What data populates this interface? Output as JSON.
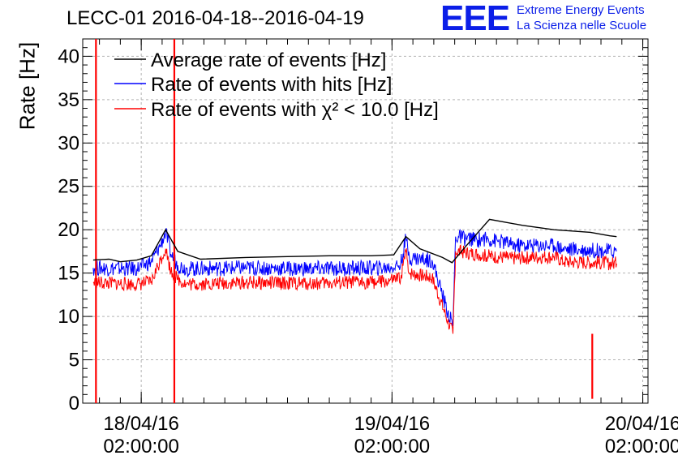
{
  "header": {
    "title": "LECC-01 2016-04-18--2016-04-19",
    "logo_text": "EEE",
    "logo_line1": "Extreme Energy Events",
    "logo_line2": "La Scienza nelle Scuole"
  },
  "colors": {
    "average": "#000000",
    "hits": "#0000ff",
    "chi2": "#ff0000",
    "logo": "#0b1ee8",
    "grid": "#b4b4b4"
  },
  "chart_data": {
    "type": "line",
    "title": "LECC-01 2016-04-18--2016-04-19",
    "xlabel": "",
    "ylabel": "Rate [Hz]",
    "ylim": [
      0,
      42
    ],
    "yticks": [
      0,
      5,
      10,
      15,
      20,
      25,
      30,
      35,
      40
    ],
    "xlim": [
      "2016-04-17T20:24",
      "2016-04-20T02:30"
    ],
    "xticks": [
      {
        "date": "18/04/16",
        "time": "02:00:00",
        "t": "2016-04-18T02:00"
      },
      {
        "date": "19/04/16",
        "time": "02:00:00",
        "t": "2016-04-19T02:00"
      },
      {
        "date": "20/04/16",
        "time": "02:00:00",
        "t": "2016-04-20T02:00"
      }
    ],
    "grid": true,
    "legend_position": "top-left",
    "series": [
      {
        "name": "Average rate of events [Hz]",
        "color": "#000000",
        "points": [
          [
            "2016-04-17T21:24",
            16.5
          ],
          [
            "2016-04-17T22:55",
            16.6
          ],
          [
            "2016-04-18T00:00",
            16.3
          ],
          [
            "2016-04-18T01:35",
            16.5
          ],
          [
            "2016-04-18T02:58",
            17.0
          ],
          [
            "2016-04-18T04:20",
            20.0
          ],
          [
            "2016-04-18T05:30",
            17.5
          ],
          [
            "2016-04-18T07:40",
            16.6
          ],
          [
            "2016-04-18T12:00",
            16.8
          ],
          [
            "2016-04-18T16:00",
            16.9
          ],
          [
            "2016-04-18T20:00",
            17.0
          ],
          [
            "2016-04-19T00:00",
            17.0
          ],
          [
            "2016-04-19T02:10",
            17.1
          ],
          [
            "2016-04-19T03:20",
            19.2
          ],
          [
            "2016-04-19T04:40",
            17.8
          ],
          [
            "2016-04-19T06:50",
            16.8
          ],
          [
            "2016-04-19T07:45",
            16.2
          ],
          [
            "2016-04-19T09:00",
            18.0
          ],
          [
            "2016-04-19T11:20",
            21.2
          ],
          [
            "2016-04-19T14:30",
            20.5
          ],
          [
            "2016-04-19T17:30",
            20.0
          ],
          [
            "2016-04-19T21:00",
            19.7
          ],
          [
            "2016-04-19T22:50",
            19.3
          ],
          [
            "2016-04-19T23:30",
            19.2
          ]
        ]
      },
      {
        "name": "Rate of events with hits [Hz]",
        "color": "#0000ff",
        "points": [
          [
            "2016-04-17T21:24",
            15.6
          ],
          [
            "2016-04-18T01:35",
            15.5
          ],
          [
            "2016-04-18T02:58",
            16.3
          ],
          [
            "2016-04-18T03:50",
            18.2
          ],
          [
            "2016-04-18T04:20",
            19.7
          ],
          [
            "2016-04-18T04:50",
            17.2
          ],
          [
            "2016-04-18T05:30",
            15.9
          ],
          [
            "2016-04-18T06:20",
            15.5
          ],
          [
            "2016-04-18T12:00",
            15.6
          ],
          [
            "2016-04-18T18:00",
            15.5
          ],
          [
            "2016-04-19T01:35",
            15.6
          ],
          [
            "2016-04-19T02:50",
            16.0
          ],
          [
            "2016-04-19T03:20",
            19.0
          ],
          [
            "2016-04-19T03:40",
            16.8
          ],
          [
            "2016-04-19T05:50",
            16.5
          ],
          [
            "2016-04-19T07:20",
            10.5
          ],
          [
            "2016-04-19T07:50",
            9.0
          ],
          [
            "2016-04-19T08:05",
            19.2
          ],
          [
            "2016-04-19T10:15",
            18.8
          ],
          [
            "2016-04-19T10:40",
            19.0
          ],
          [
            "2016-04-19T13:00",
            18.5
          ],
          [
            "2016-04-19T13:25",
            18.2
          ],
          [
            "2016-04-19T16:30",
            18.2
          ],
          [
            "2016-04-19T17:30",
            18.2
          ],
          [
            "2016-04-19T18:30",
            17.8
          ],
          [
            "2016-04-19T23:30",
            17.5
          ]
        ]
      },
      {
        "name": "Rate of events with χ² < 10.0 [Hz]",
        "color": "#ff0000",
        "points": [
          [
            "2016-04-17T21:24",
            13.9
          ],
          [
            "2016-04-18T01:35",
            13.7
          ],
          [
            "2016-04-18T02:58",
            14.0
          ],
          [
            "2016-04-18T03:50",
            16.5
          ],
          [
            "2016-04-18T04:20",
            17.8
          ],
          [
            "2016-04-18T04:50",
            15.2
          ],
          [
            "2016-04-18T05:30",
            14.3
          ],
          [
            "2016-04-18T06:20",
            13.7
          ],
          [
            "2016-04-18T12:00",
            13.9
          ],
          [
            "2016-04-18T18:00",
            13.8
          ],
          [
            "2016-04-19T01:35",
            14.0
          ],
          [
            "2016-04-19T02:50",
            14.4
          ],
          [
            "2016-04-19T03:20",
            17.5
          ],
          [
            "2016-04-19T03:40",
            15.0
          ],
          [
            "2016-04-19T05:50",
            14.5
          ],
          [
            "2016-04-19T07:20",
            9.5
          ],
          [
            "2016-04-19T07:50",
            8.0
          ],
          [
            "2016-04-19T08:05",
            17.5
          ],
          [
            "2016-04-19T10:15",
            17.2
          ],
          [
            "2016-04-19T10:40",
            17.0
          ],
          [
            "2016-04-19T13:00",
            16.8
          ],
          [
            "2016-04-19T13:25",
            16.7
          ],
          [
            "2016-04-19T16:30",
            16.9
          ],
          [
            "2016-04-19T17:30",
            16.9
          ],
          [
            "2016-04-19T18:30",
            16.3
          ],
          [
            "2016-04-19T23:30",
            16.1
          ]
        ],
        "spikes": [
          [
            "2016-04-17T21:40",
            42,
            0.0
          ],
          [
            "2016-04-18T05:10",
            42,
            0.0
          ],
          [
            "2016-04-19T21:10",
            8.0,
            0.5
          ]
        ]
      }
    ]
  }
}
